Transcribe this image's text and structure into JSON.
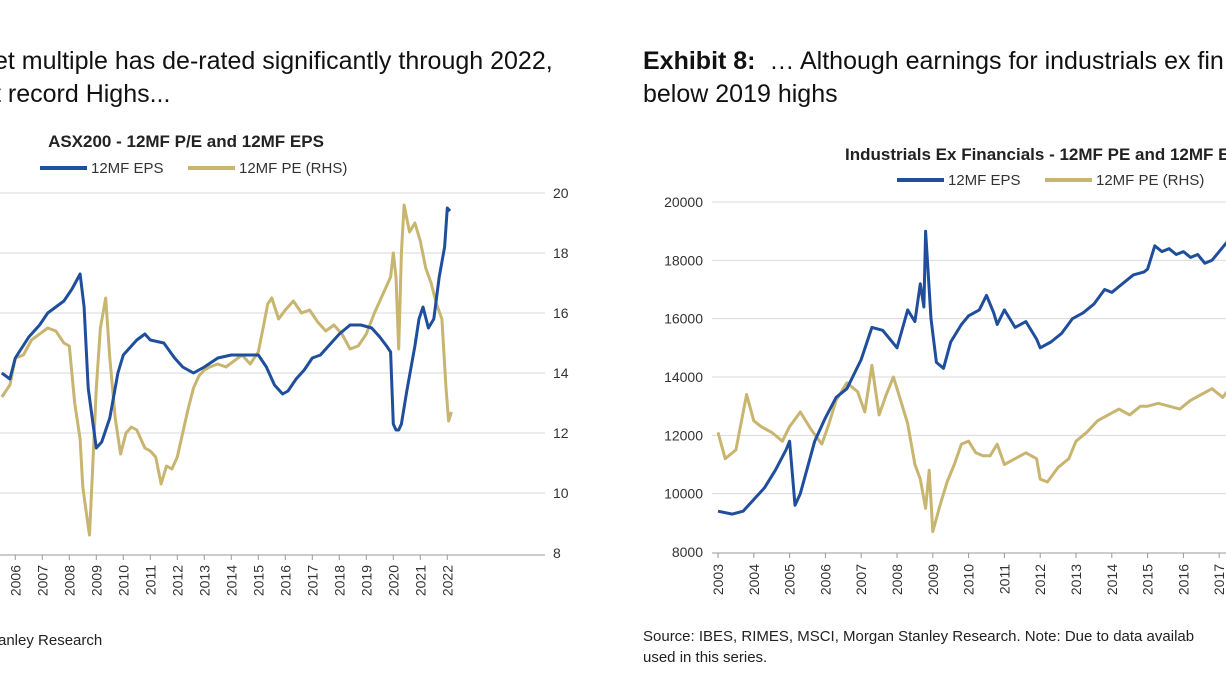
{
  "left": {
    "header_line1": "et multiple has de-rated significantly through 2022,",
    "header_line2": "t record Highs...",
    "source": "anley Research"
  },
  "right": {
    "exhibit_label": "Exhibit 8:",
    "header_line1": "… Although earnings for industrials ex fin",
    "header_line2": "below 2019 highs",
    "source_line1": "Source: IBES, RIMES, MSCI, Morgan Stanley Research. Note: Due to data availab",
    "source_line2": "used in this series."
  },
  "colors": {
    "eps": "#1f4e9c",
    "pe": "#c8b570",
    "grid": "#d9d9d9"
  },
  "chart_data": [
    {
      "type": "line",
      "title": "ASX200 - 12MF P/E and 12MF EPS",
      "x_ticks": [
        "2006",
        "2007",
        "2008",
        "2009",
        "2010",
        "2011",
        "2012",
        "2013",
        "2014",
        "2015",
        "2016",
        "2017",
        "2018",
        "2019",
        "2020",
        "2021",
        "2022"
      ],
      "y2_ticks": [
        "20",
        "18",
        "16",
        "14",
        "12",
        "10",
        "8"
      ],
      "y2lim": [
        8,
        20
      ],
      "series": [
        {
          "name": "12MF EPS",
          "axis": "left-unlabeled",
          "x": [
            2005.5,
            2005.8,
            2006,
            2006.5,
            2006.9,
            2007.2,
            2007.5,
            2007.8,
            2008.1,
            2008.4,
            2008.55,
            2008.7,
            2008.85,
            2009.0,
            2009.2,
            2009.5,
            2009.8,
            2010.0,
            2010.5,
            2010.8,
            2011.0,
            2011.5,
            2011.9,
            2012.2,
            2012.6,
            2013.0,
            2013.5,
            2014.0,
            2014.5,
            2015.0,
            2015.3,
            2015.6,
            2015.9,
            2016.1,
            2016.4,
            2016.7,
            2017.0,
            2017.3,
            2017.7,
            2018.0,
            2018.4,
            2018.8,
            2019.2,
            2019.5,
            2019.75,
            2019.9,
            2020.0,
            2020.1,
            2020.2,
            2020.3,
            2020.5,
            2020.8,
            2020.95,
            2021.1,
            2021.3,
            2021.5,
            2021.7,
            2021.9,
            2022.0,
            2022.1
          ],
          "y": [
            14.0,
            13.8,
            14.5,
            15.2,
            15.6,
            16.0,
            16.2,
            16.4,
            16.8,
            17.3,
            16.2,
            13.5,
            12.5,
            11.5,
            11.7,
            12.5,
            14.0,
            14.6,
            15.1,
            15.3,
            15.1,
            15.0,
            14.5,
            14.2,
            14.0,
            14.2,
            14.5,
            14.6,
            14.6,
            14.6,
            14.2,
            13.6,
            13.3,
            13.4,
            13.8,
            14.1,
            14.5,
            14.6,
            15.0,
            15.3,
            15.6,
            15.6,
            15.5,
            15.2,
            14.9,
            14.7,
            12.3,
            12.1,
            12.1,
            12.3,
            13.4,
            14.9,
            15.8,
            16.2,
            15.5,
            15.8,
            17.2,
            18.2,
            19.5,
            19.4
          ]
        },
        {
          "name": "12MF PE (RHS)",
          "axis": "right",
          "x": [
            2005.5,
            2005.8,
            2006.0,
            2006.3,
            2006.6,
            2006.9,
            2007.2,
            2007.5,
            2007.8,
            2008.0,
            2008.2,
            2008.4,
            2008.5,
            2008.65,
            2008.75,
            2008.85,
            2009.0,
            2009.15,
            2009.35,
            2009.5,
            2009.7,
            2009.9,
            2010.1,
            2010.3,
            2010.5,
            2010.8,
            2011.0,
            2011.2,
            2011.4,
            2011.6,
            2011.8,
            2012.0,
            2012.2,
            2012.4,
            2012.6,
            2012.8,
            2013.0,
            2013.2,
            2013.5,
            2013.8,
            2014.1,
            2014.4,
            2014.7,
            2015.0,
            2015.2,
            2015.35,
            2015.5,
            2015.75,
            2016.0,
            2016.3,
            2016.6,
            2016.9,
            2017.2,
            2017.5,
            2017.8,
            2018.1,
            2018.4,
            2018.7,
            2019.0,
            2019.3,
            2019.6,
            2019.9,
            2020.0,
            2020.1,
            2020.2,
            2020.3,
            2020.4,
            2020.6,
            2020.8,
            2021.0,
            2021.2,
            2021.4,
            2021.6,
            2021.8,
            2021.95,
            2022.05,
            2022.15
          ],
          "y": [
            13.2,
            13.6,
            14.5,
            14.6,
            15.1,
            15.3,
            15.5,
            15.4,
            15.0,
            14.9,
            13.0,
            11.8,
            10.2,
            9.2,
            8.6,
            10.5,
            13.5,
            15.5,
            16.5,
            14.5,
            12.5,
            11.3,
            12.0,
            12.2,
            12.1,
            11.5,
            11.4,
            11.2,
            10.3,
            10.9,
            10.8,
            11.2,
            12.0,
            12.8,
            13.5,
            13.9,
            14.1,
            14.2,
            14.3,
            14.2,
            14.4,
            14.6,
            14.3,
            14.7,
            15.6,
            16.3,
            16.5,
            15.8,
            16.1,
            16.4,
            16.0,
            16.1,
            15.7,
            15.4,
            15.6,
            15.3,
            14.8,
            14.9,
            15.3,
            16.0,
            16.6,
            17.2,
            18.0,
            17.2,
            14.8,
            18.0,
            19.6,
            18.7,
            19.0,
            18.4,
            17.5,
            17.0,
            16.3,
            15.8,
            13.5,
            12.4,
            12.7
          ]
        }
      ]
    },
    {
      "type": "line",
      "title": "Industrials Ex Financials - 12MF PE and 12MF E",
      "x_ticks": [
        "2003",
        "2004",
        "2005",
        "2006",
        "2007",
        "2008",
        "2009",
        "2010",
        "2011",
        "2012",
        "2013",
        "2014",
        "2015",
        "2016",
        "2017"
      ],
      "y_ticks": [
        "20000",
        "18000",
        "16000",
        "14000",
        "12000",
        "10000",
        "8000"
      ],
      "ylim": [
        8000,
        20000
      ],
      "series": [
        {
          "name": "12MF EPS",
          "axis": "left",
          "x": [
            2003.0,
            2003.4,
            2003.7,
            2004.0,
            2004.3,
            2004.6,
            2004.9,
            2005.0,
            2005.15,
            2005.3,
            2005.7,
            2006.0,
            2006.3,
            2006.6,
            2007.0,
            2007.3,
            2007.6,
            2008.0,
            2008.3,
            2008.5,
            2008.65,
            2008.75,
            2008.8,
            2008.95,
            2009.1,
            2009.3,
            2009.5,
            2009.8,
            2010.0,
            2010.3,
            2010.5,
            2010.7,
            2010.8,
            2011.0,
            2011.3,
            2011.6,
            2011.9,
            2012.0,
            2012.3,
            2012.6,
            2012.9,
            2013.2,
            2013.5,
            2013.8,
            2014.0,
            2014.3,
            2014.6,
            2014.9,
            2015.0,
            2015.2,
            2015.4,
            2015.6,
            2015.8,
            2016.0,
            2016.2,
            2016.4,
            2016.6,
            2016.8,
            2017.0,
            2017.2,
            2017.4
          ],
          "y": [
            9400,
            9300,
            9400,
            9800,
            10200,
            10800,
            11500,
            11800,
            9600,
            10000,
            11800,
            12600,
            13300,
            13600,
            14600,
            15700,
            15600,
            15000,
            16300,
            15900,
            17200,
            16400,
            19000,
            16000,
            14500,
            14300,
            15200,
            15800,
            16100,
            16300,
            16800,
            16200,
            15800,
            16300,
            15700,
            15900,
            15300,
            15000,
            15200,
            15500,
            16000,
            16200,
            16500,
            17000,
            16900,
            17200,
            17500,
            17600,
            17700,
            18500,
            18300,
            18400,
            18200,
            18300,
            18100,
            18200,
            17900,
            18000,
            18300,
            18600,
            19000
          ]
        },
        {
          "name": "12MF PE (RHS)",
          "axis": "right",
          "x": [
            2003.0,
            2003.2,
            2003.5,
            2003.8,
            2004.0,
            2004.2,
            2004.5,
            2004.8,
            2005.0,
            2005.3,
            2005.6,
            2005.9,
            2006.1,
            2006.3,
            2006.6,
            2006.9,
            2007.1,
            2007.3,
            2007.5,
            2007.7,
            2007.9,
            2008.1,
            2008.3,
            2008.5,
            2008.65,
            2008.8,
            2008.9,
            2009.0,
            2009.2,
            2009.4,
            2009.6,
            2009.8,
            2010.0,
            2010.2,
            2010.4,
            2010.6,
            2010.8,
            2011.0,
            2011.3,
            2011.6,
            2011.9,
            2012.0,
            2012.2,
            2012.5,
            2012.8,
            2013.0,
            2013.3,
            2013.6,
            2013.9,
            2014.2,
            2014.5,
            2014.8,
            2015.0,
            2015.3,
            2015.6,
            2015.9,
            2016.2,
            2016.5,
            2016.8,
            2017.1,
            2017.4
          ],
          "y": [
            12100,
            11200,
            11500,
            13400,
            12500,
            12300,
            12100,
            11800,
            12300,
            12800,
            12200,
            11700,
            12400,
            13200,
            13800,
            13500,
            12800,
            14400,
            12700,
            13400,
            14000,
            13200,
            12400,
            11000,
            10500,
            9500,
            10800,
            8700,
            9600,
            10400,
            11000,
            11700,
            11800,
            11400,
            11300,
            11300,
            11700,
            11000,
            11200,
            11400,
            11200,
            10500,
            10400,
            10900,
            11200,
            11800,
            12100,
            12500,
            12700,
            12900,
            12700,
            13000,
            13000,
            13100,
            13000,
            12900,
            13200,
            13400,
            13600,
            13300,
            13800
          ]
        }
      ]
    }
  ]
}
